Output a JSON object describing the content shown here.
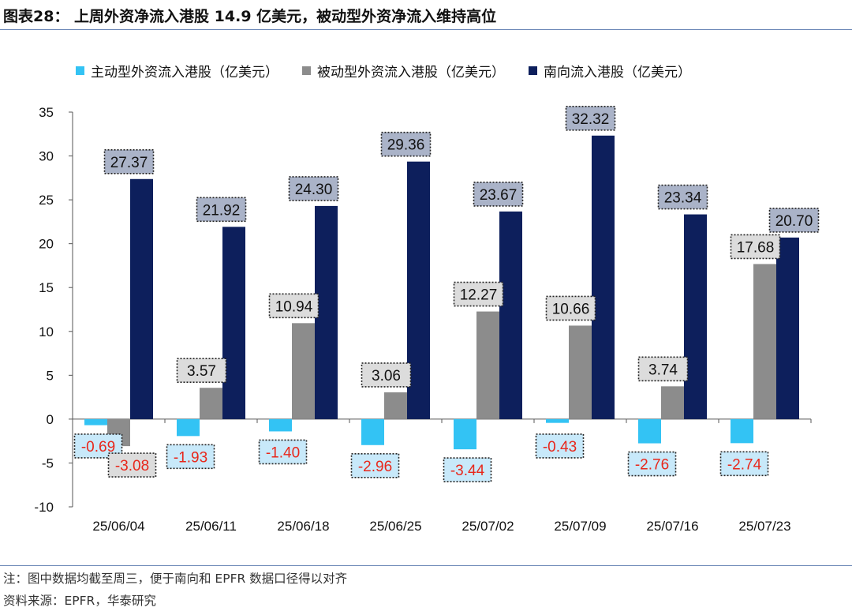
{
  "figure": {
    "title": "图表28：  上周外资净流入港股 14.9 亿美元，被动型外资净流入维持高位",
    "note": "注：图中数据均截至周三，便于南向和 EPFR 数据口径得以对齐",
    "source": "资料来源：EPFR，华泰研究"
  },
  "colors": {
    "active": "#33c3f4",
    "passive": "#8c8c8c",
    "southbound": "#0d1f5c",
    "negative_text": "#e8271b",
    "label_text": "#111111",
    "active_label_bg": "#c8e9fa",
    "passive_label_bg": "#dcdcdc",
    "south_label_bg": "#aab3c8",
    "rule": "#6a86b6"
  },
  "chart_data": {
    "type": "bar",
    "title": "上周外资净流入港股 14.9 亿美元，被动型外资净流入维持高位",
    "xlabel": "",
    "ylabel": "",
    "ylim": [
      -10,
      35
    ],
    "yticks": [
      -10,
      -5,
      0,
      5,
      10,
      15,
      20,
      25,
      30,
      35
    ],
    "grid": false,
    "legend_position": "top",
    "categories": [
      "25/06/04",
      "25/06/11",
      "25/06/18",
      "25/06/25",
      "25/07/02",
      "25/07/09",
      "25/07/16",
      "25/07/23"
    ],
    "series": [
      {
        "name": "主动型外资流入港股（亿美元）",
        "key": "active",
        "values": [
          -0.69,
          -1.93,
          -1.4,
          -2.96,
          -3.44,
          -0.43,
          -2.76,
          -2.74
        ],
        "labels": [
          "-0.69",
          "-1.93",
          "-1.40",
          "-2.96",
          "-3.44",
          "-0.43",
          "-2.76",
          "-2.74"
        ]
      },
      {
        "name": "被动型外资流入港股（亿美元）",
        "key": "passive",
        "values": [
          -3.08,
          3.57,
          10.94,
          3.06,
          12.27,
          10.66,
          3.74,
          17.68
        ],
        "labels": [
          "-3.08",
          "3.57",
          "10.94",
          "3.06",
          "12.27",
          "10.66",
          "3.74",
          "17.68"
        ]
      },
      {
        "name": "南向流入港股（亿美元）",
        "key": "southbound",
        "values": [
          27.37,
          21.92,
          24.3,
          29.36,
          23.67,
          32.32,
          23.34,
          20.7
        ],
        "labels": [
          "27.37",
          "21.92",
          "24.30",
          "29.36",
          "23.67",
          "32.32",
          "23.34",
          "20.70"
        ]
      }
    ]
  }
}
